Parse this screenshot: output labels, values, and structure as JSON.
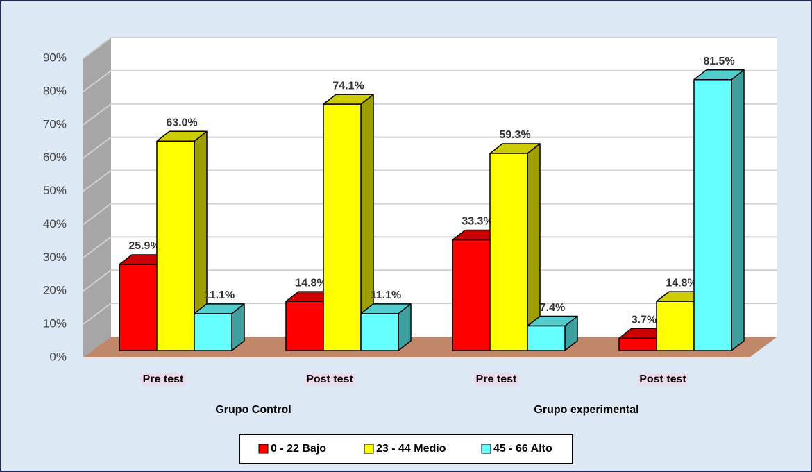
{
  "chart_data": {
    "type": "bar3d",
    "categories": [
      "Pre test",
      "Post test",
      "Pre test",
      "Post test"
    ],
    "groups": [
      "Grupo Control",
      "Grupo experimental"
    ],
    "series": [
      {
        "name": "0 - 22 Bajo",
        "color": "#ff0000",
        "values": [
          25.9,
          14.8,
          33.3,
          3.7
        ],
        "value_labels": [
          "25.9%",
          "14.8%",
          "33.3%",
          "3.7%"
        ]
      },
      {
        "name": "23 - 44 Medio",
        "color": "#ffff00",
        "values": [
          63.0,
          74.1,
          59.3,
          14.8
        ],
        "value_labels": [
          "63.0%",
          "74.1%",
          "59.3%",
          "14.8%"
        ]
      },
      {
        "name": "45 - 66 Alto",
        "color": "#66ffff",
        "values": [
          11.1,
          11.1,
          7.4,
          81.5
        ],
        "value_labels": [
          "11.1%",
          "11.1%",
          "7.4%",
          "81.5%"
        ]
      }
    ],
    "ylim": [
      0,
      90
    ],
    "yticks": [
      {
        "value": 0,
        "label": "0%"
      },
      {
        "value": 10,
        "label": "10%"
      },
      {
        "value": 20,
        "label": "20%"
      },
      {
        "value": 30,
        "label": "30%"
      },
      {
        "value": 40,
        "label": "40%"
      },
      {
        "value": 50,
        "label": "50%"
      },
      {
        "value": 60,
        "label": "60%"
      },
      {
        "value": 70,
        "label": "70%"
      },
      {
        "value": 80,
        "label": "80%"
      },
      {
        "value": 90,
        "label": "90%"
      }
    ],
    "grid": true
  }
}
